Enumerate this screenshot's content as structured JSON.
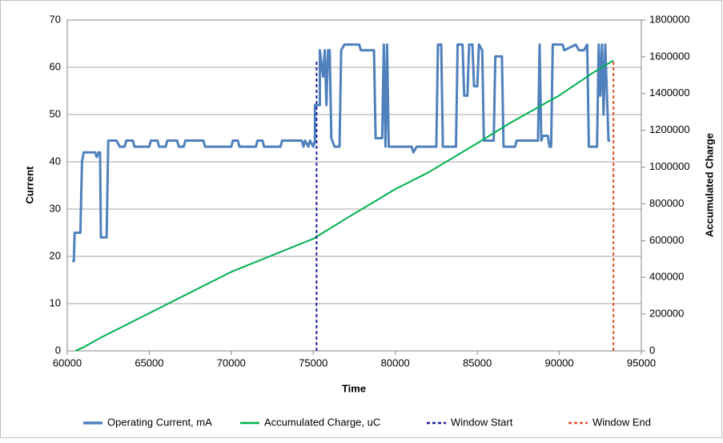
{
  "chart_data": {
    "type": "line",
    "xlabel": "Time",
    "ylabel": "Current",
    "y2label": "Accumulated Charge",
    "xlim": [
      60000,
      95000
    ],
    "xticks": [
      60000,
      65000,
      70000,
      75000,
      80000,
      85000,
      90000,
      95000
    ],
    "ylim": [
      0,
      70
    ],
    "yticks": [
      0,
      10,
      20,
      30,
      40,
      50,
      60,
      70
    ],
    "y2lim": [
      0,
      1800000
    ],
    "y2ticks": [
      0,
      200000,
      400000,
      600000,
      800000,
      1000000,
      1200000,
      1400000,
      1600000,
      1800000
    ],
    "grid": true,
    "legend": "bottom",
    "series": [
      {
        "name": "Operating Current, mA",
        "color": "#4f81bd",
        "width": 3,
        "dash": "none",
        "x": [
          60300,
          60400,
          60450,
          60800,
          60900,
          61000,
          61700,
          61800,
          61900,
          62000,
          62050,
          62400,
          62500,
          63000,
          63200,
          63500,
          63600,
          64000,
          64100,
          65000,
          65100,
          65500,
          65600,
          66000,
          66100,
          66700,
          66800,
          67100,
          67200,
          68300,
          68400,
          70000,
          70100,
          70400,
          70500,
          71500,
          71600,
          71900,
          72000,
          73000,
          73100,
          74300,
          74400,
          74500,
          74700,
          74800,
          75000,
          75100,
          75100,
          75400,
          75400,
          75600,
          75700,
          75800,
          75900,
          76000,
          76100,
          76300,
          76600,
          76700,
          76900,
          77800,
          77900,
          78700,
          78800,
          79200,
          79300,
          79400,
          79500,
          79600,
          81000,
          81100,
          81300,
          82500,
          82600,
          82800,
          82900,
          83700,
          83800,
          84100,
          84200,
          84400,
          84500,
          84700,
          84800,
          85000,
          85100,
          85300,
          85400,
          86000,
          86100,
          86500,
          86600,
          87300,
          87400,
          88700,
          88800,
          88900,
          89000,
          89300,
          89400,
          89500,
          89600,
          90200,
          90300,
          91000,
          91200,
          91500,
          91700,
          91800,
          92300,
          92400,
          92500,
          92600,
          92700,
          92800,
          93000,
          93100
        ],
        "values": [
          19,
          19,
          25,
          25,
          40,
          42,
          42,
          41,
          42,
          42,
          24,
          24,
          44.5,
          44.5,
          43.2,
          43.2,
          44.5,
          44.5,
          43.2,
          43.2,
          44.5,
          44.5,
          43.2,
          43.2,
          44.5,
          44.5,
          43.2,
          43.2,
          44.5,
          44.5,
          43.2,
          43.2,
          44.5,
          44.5,
          43.2,
          43.2,
          44.5,
          44.5,
          43.2,
          43.2,
          44.5,
          44.5,
          43.2,
          44.5,
          43.2,
          44.5,
          43.2,
          44.5,
          52,
          52,
          63.6,
          58,
          63.6,
          52,
          63.6,
          63.6,
          45,
          43.2,
          43.2,
          63.6,
          64.8,
          64.8,
          63.6,
          63.6,
          45,
          45,
          64.8,
          43.2,
          64.8,
          43.2,
          43.2,
          42,
          43.2,
          43.2,
          64.8,
          64.8,
          43.2,
          43.2,
          64.8,
          64.8,
          54,
          54,
          64.8,
          64.8,
          56,
          56,
          64.8,
          63.6,
          44.5,
          44.5,
          62.3,
          62.3,
          43.2,
          43.2,
          44.5,
          44.5,
          64.8,
          44.5,
          45.5,
          45.5,
          43.2,
          43.2,
          64.8,
          64.8,
          63.6,
          64.8,
          63.6,
          63.6,
          64.8,
          43.2,
          43.2,
          64.8,
          54,
          64.8,
          50,
          64.8,
          44.5,
          44.5
        ]
      },
      {
        "name": "Accumulated Charge, uC",
        "color": "#00b050",
        "width": 2,
        "dash": "none",
        "axis": "y2",
        "x": [
          60500,
          61000,
          62000,
          70000,
          75000,
          77000,
          80000,
          82000,
          85000,
          87000,
          90000,
          92000,
          93300
        ],
        "values": [
          0,
          20000,
          70000,
          430000,
          610000,
          720000,
          880000,
          970000,
          1130000,
          1240000,
          1390000,
          1510000,
          1580000
        ]
      },
      {
        "name": "Window Start",
        "color": "#1f1f9f",
        "width": 2,
        "dash": "4,3",
        "x": [
          75200,
          75200
        ],
        "values": [
          0,
          61.5
        ]
      },
      {
        "name": "Window End",
        "color": "#e0502a",
        "width": 2,
        "dash": "4,3",
        "x": [
          93300,
          93300
        ],
        "values": [
          0,
          61.5
        ]
      }
    ]
  }
}
